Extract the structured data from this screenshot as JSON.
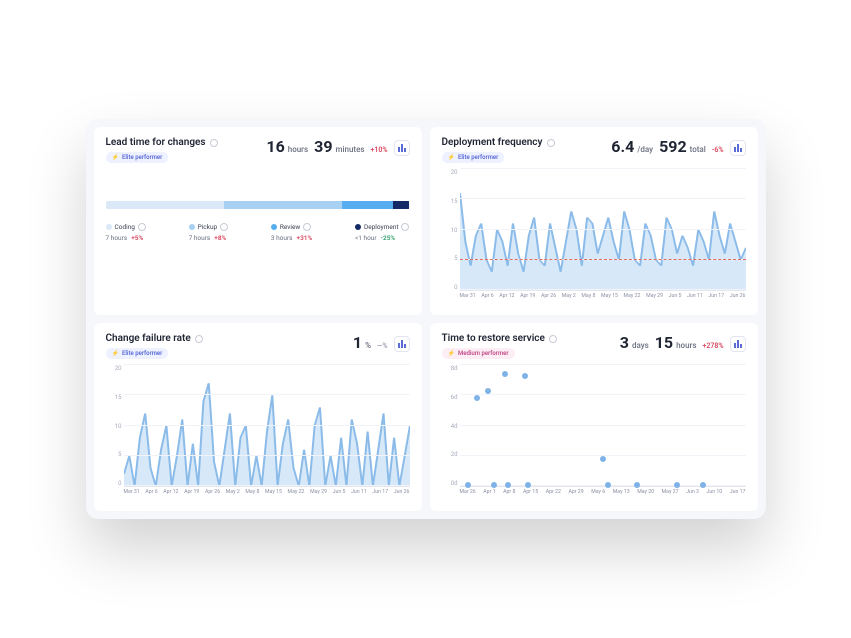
{
  "x_labels": [
    "Mar 31",
    "Apr 6",
    "Apr 12",
    "Apr 19",
    "Apr 26",
    "May 2",
    "May 8",
    "May 15",
    "May 22",
    "May 29",
    "Jun 5",
    "Jun 11",
    "Jun 17",
    "Jun 26"
  ],
  "lead_time": {
    "title": "Lead time for changes",
    "badge": "Elite performer",
    "hours": 16,
    "hours_unit": "hours",
    "minutes": 39,
    "minutes_unit": "minutes",
    "delta": "+10%",
    "segments": [
      {
        "label": "Coding",
        "color": "#dbe8f7",
        "width": 38.9,
        "value": "7 hours",
        "delta": "+5%",
        "delta_color": "#d9455f"
      },
      {
        "label": "Pickup",
        "color": "#a7d0f2",
        "width": 38.9,
        "value": "7 hours",
        "delta": "+8%",
        "delta_color": "#d9455f"
      },
      {
        "label": "Review",
        "color": "#56aef0",
        "width": 16.7,
        "value": "3 hours",
        "delta": "+31%",
        "delta_color": "#d9455f"
      },
      {
        "label": "Deployment",
        "color": "#142a66",
        "width": 5.5,
        "value": "<1 hour",
        "delta": "-25%",
        "delta_color": "#2e9e6b"
      }
    ]
  },
  "deploy_freq": {
    "title": "Deployment frequency",
    "badge": "Elite performer",
    "rate": "6.4",
    "rate_unit": "/day",
    "total": "592",
    "total_unit": "total",
    "delta": "-6%",
    "ylim": [
      0,
      20
    ],
    "yticks": [
      0,
      5,
      10,
      15,
      20
    ],
    "ref_line": 5,
    "line_color": "#8bbbe9",
    "fill_color": "#d7e9f9",
    "ref_color": "#e36a5c",
    "values": [
      16,
      8,
      4,
      9,
      11,
      5,
      3,
      10,
      8,
      4,
      11,
      6,
      3,
      9,
      12,
      5,
      4,
      11,
      7,
      3,
      8,
      13,
      10,
      4,
      12,
      11,
      6,
      9,
      12,
      8,
      5,
      13,
      10,
      5,
      4,
      11,
      9,
      5,
      4,
      12,
      10,
      6,
      9,
      7,
      4,
      10,
      8,
      5,
      13,
      9,
      6,
      11,
      8,
      5,
      7
    ]
  },
  "failure_rate": {
    "title": "Change failure rate",
    "badge": "Elite performer",
    "value": "1",
    "unit": "%",
    "delta": "—%",
    "ylim": [
      0,
      20
    ],
    "yticks": [
      0,
      5,
      10,
      15,
      20
    ],
    "fill_color": "#d7e9f9",
    "line_color": "#8bbbe9",
    "values": [
      2,
      5,
      0,
      8,
      12,
      3,
      0,
      6,
      10,
      0,
      5,
      11,
      0,
      7,
      0,
      14,
      17,
      4,
      0,
      6,
      12,
      0,
      8,
      10,
      0,
      5,
      0,
      9,
      15,
      0,
      7,
      11,
      3,
      0,
      6,
      0,
      10,
      13,
      0,
      5,
      0,
      8,
      0,
      11,
      7,
      0,
      9,
      0,
      6,
      12,
      0,
      8,
      0,
      5,
      10
    ]
  },
  "restore_time": {
    "title": "Time to restore service",
    "badge": "Medium performer",
    "days": "3",
    "days_unit": "days",
    "hours": "15",
    "hours_unit": "hours",
    "delta": "+278%",
    "yticks": [
      "0d",
      "2d",
      "4d",
      "6d",
      "8d"
    ],
    "ymax": 8,
    "x_labels": [
      "Mar 26",
      "Apr 1",
      "Apr 8",
      "Apr 15",
      "Apr 22",
      "Apr 29",
      "May 6",
      "May 13",
      "May 20",
      "May 27",
      "Jun 3",
      "Jun 10",
      "Jun 17"
    ],
    "points": [
      {
        "x": 3,
        "y": 0.1
      },
      {
        "x": 6,
        "y": 5.8
      },
      {
        "x": 10,
        "y": 6.3
      },
      {
        "x": 12,
        "y": 0.1
      },
      {
        "x": 16,
        "y": 7.4
      },
      {
        "x": 17,
        "y": 0.1
      },
      {
        "x": 23,
        "y": 7.3
      },
      {
        "x": 24,
        "y": 0.1
      },
      {
        "x": 50,
        "y": 1.8
      },
      {
        "x": 52,
        "y": 0.1
      },
      {
        "x": 62,
        "y": 0.1
      },
      {
        "x": 76,
        "y": 0.1
      },
      {
        "x": 85,
        "y": 0.1
      }
    ],
    "dot_color": "#7fb3e8"
  }
}
